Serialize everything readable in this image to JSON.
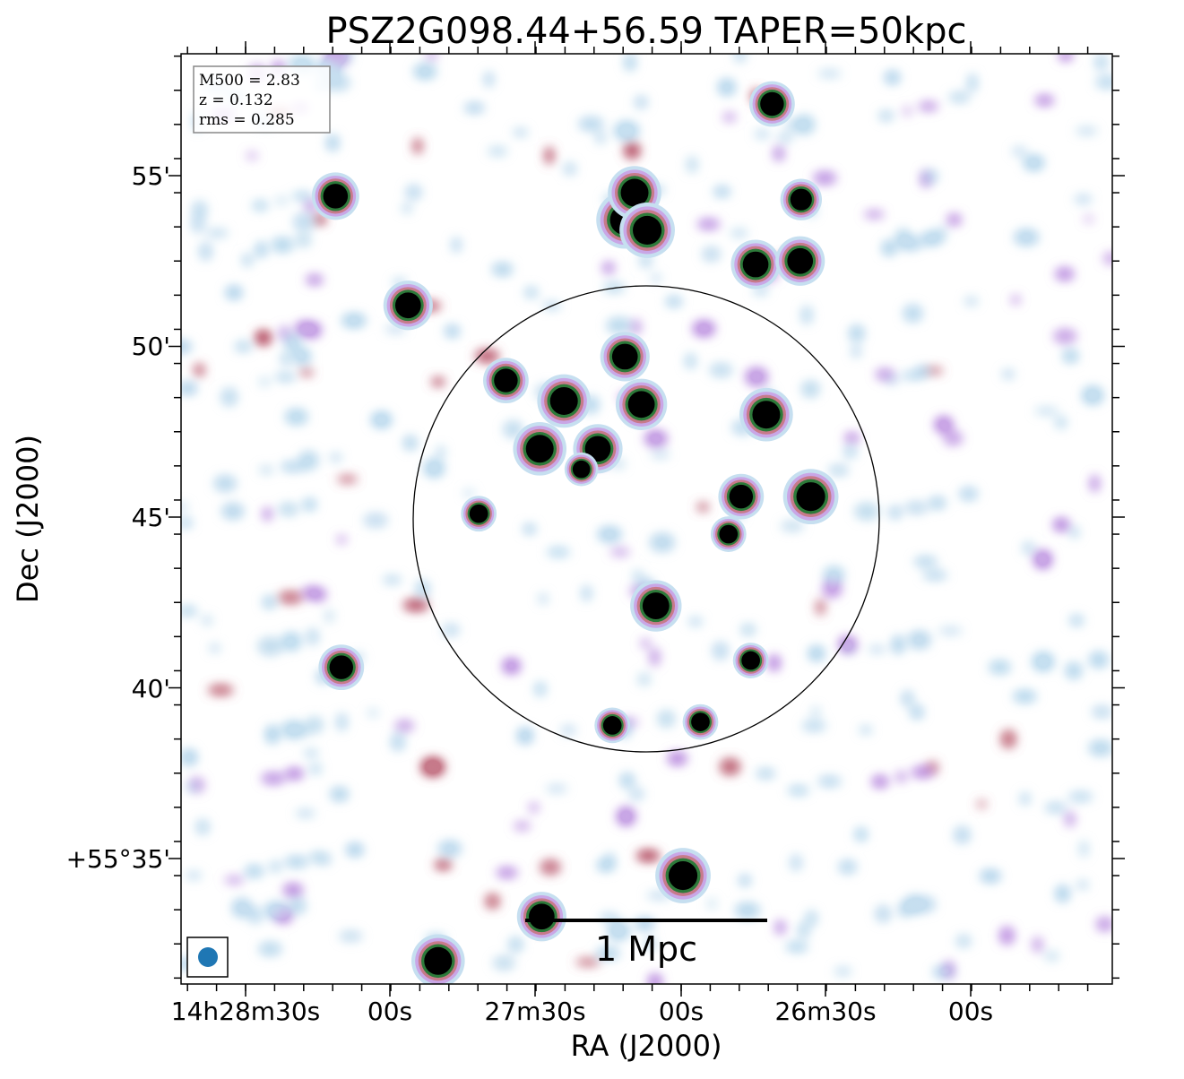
{
  "chart_data": {
    "type": "heatmap",
    "title": "PSZ2G098.44+56.59 TAPER=50kpc",
    "xlabel": "RA (J2000)",
    "ylabel": "Dec (J2000)",
    "x_ticks": [
      "14h28m30s",
      "00s",
      "27m30s",
      "00s",
      "26m30s",
      "00s"
    ],
    "y_ticks": [
      "+55°35'",
      "40'",
      "45'",
      "50'",
      "55'"
    ],
    "info_box": [
      "M500 = 2.83",
      "z = 0.132",
      "rms = 0.285"
    ],
    "scalebar_label": "1 Mpc",
    "colormap": [
      "#ffffff",
      "#c6dff0",
      "#c9a6e6",
      "#c77a8a",
      "#2d7a3a",
      "#000000"
    ],
    "sources": [
      {
        "ra_sec": 2.2,
        "dec_arcmin": 53.7,
        "strength": 1.0
      },
      {
        "ra_sec": 1.2,
        "dec_arcmin": 54.5,
        "strength": 0.9
      },
      {
        "ra_sec": -0.1,
        "dec_arcmin": 53.4,
        "strength": 0.95
      },
      {
        "ra_sec": 8.5,
        "dec_arcmin": 48.4,
        "strength": 0.9
      },
      {
        "ra_sec": 11.0,
        "dec_arcmin": 47.0,
        "strength": 0.9
      },
      {
        "ra_sec": 5.0,
        "dec_arcmin": 47.0,
        "strength": 0.8
      },
      {
        "ra_sec": 2.2,
        "dec_arcmin": 49.7,
        "strength": 0.8
      },
      {
        "ra_sec": 0.5,
        "dec_arcmin": 48.3,
        "strength": 0.85
      },
      {
        "ra_sec": -1.0,
        "dec_arcmin": 42.4,
        "strength": 0.85
      },
      {
        "ra_sec": -3.8,
        "dec_arcmin": 34.5,
        "strength": 0.95
      },
      {
        "ra_sec": 24.6,
        "dec_arcmin": 51.2,
        "strength": 0.8
      },
      {
        "ra_sec": 14.5,
        "dec_arcmin": 49.0,
        "strength": 0.7
      },
      {
        "ra_sec": 10.8,
        "dec_arcmin": 33.3,
        "strength": 0.8
      },
      {
        "ra_sec": 21.5,
        "dec_arcmin": 32.0,
        "strength": 0.9
      },
      {
        "ra_sec": -11.3,
        "dec_arcmin": 52.4,
        "strength": 0.8
      },
      {
        "ra_sec": -12.4,
        "dec_arcmin": 48.0,
        "strength": 0.9
      },
      {
        "ra_sec": -9.8,
        "dec_arcmin": 45.6,
        "strength": 0.7
      },
      {
        "ra_sec": -17.0,
        "dec_arcmin": 45.6,
        "strength": 0.95
      },
      {
        "ra_sec": -15.9,
        "dec_arcmin": 52.5,
        "strength": 0.8
      },
      {
        "ra_sec": -16.0,
        "dec_arcmin": 54.3,
        "strength": 0.6
      },
      {
        "ra_sec": -13.0,
        "dec_arcmin": 57.1,
        "strength": 0.7
      },
      {
        "ra_sec": 32.1,
        "dec_arcmin": 54.4,
        "strength": 0.75
      },
      {
        "ra_sec": 31.5,
        "dec_arcmin": 40.6,
        "strength": 0.7
      },
      {
        "ra_sec": 6.7,
        "dec_arcmin": 46.4,
        "strength": 0.4
      },
      {
        "ra_sec": 3.5,
        "dec_arcmin": 38.9,
        "strength": 0.45
      },
      {
        "ra_sec": -5.6,
        "dec_arcmin": 39.0,
        "strength": 0.45
      },
      {
        "ra_sec": -8.5,
        "dec_arcmin": 44.5,
        "strength": 0.45
      },
      {
        "ra_sec": -10.8,
        "dec_arcmin": 40.8,
        "strength": 0.45
      },
      {
        "ra_sec": 17.3,
        "dec_arcmin": 45.1,
        "strength": 0.45
      }
    ]
  }
}
